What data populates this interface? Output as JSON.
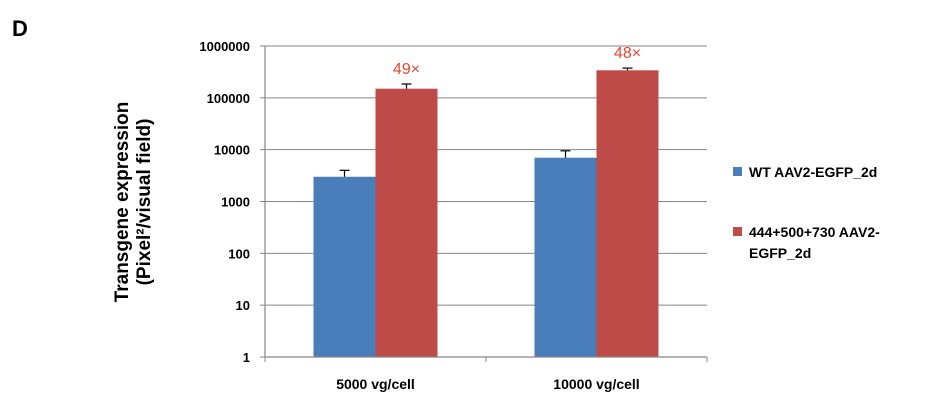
{
  "panel_label": "D",
  "chart_data": {
    "type": "bar",
    "scale": "log",
    "title": "",
    "xlabel": "",
    "ylabel": "Transgene expression",
    "ylabel_line2": "(Pixel²/visual field)",
    "ylim": [
      1,
      1000000
    ],
    "ticks": [
      {
        "value": 1,
        "label": "1"
      },
      {
        "value": 10,
        "label": "10"
      },
      {
        "value": 100,
        "label": "100"
      },
      {
        "value": 1000,
        "label": "1000"
      },
      {
        "value": 10000,
        "label": "10000"
      },
      {
        "value": 100000,
        "label": "100000"
      },
      {
        "value": 1000000,
        "label": "1000000"
      }
    ],
    "categories": [
      "5000 vg/cell",
      "10000 vg/cell"
    ],
    "series": [
      {
        "name": "WT AAV2-EGFP_2d",
        "color": "#4a7ebb",
        "values": [
          3000,
          7000
        ],
        "error_upper": [
          4000,
          9500
        ]
      },
      {
        "name": "444+500+730 AAV2-EGFP_2d",
        "legend_lines": [
          "444+500+730 AAV2-",
          "EGFP_2d"
        ],
        "color": "#be4b48",
        "values": [
          150000,
          340000
        ],
        "error_upper": [
          185000,
          375000
        ]
      }
    ],
    "annotations": [
      {
        "category": 0,
        "text": "49×"
      },
      {
        "category": 1,
        "text": "48×"
      }
    ],
    "annotation_color": "#e8432b",
    "grid": true,
    "legend_position": "right"
  }
}
